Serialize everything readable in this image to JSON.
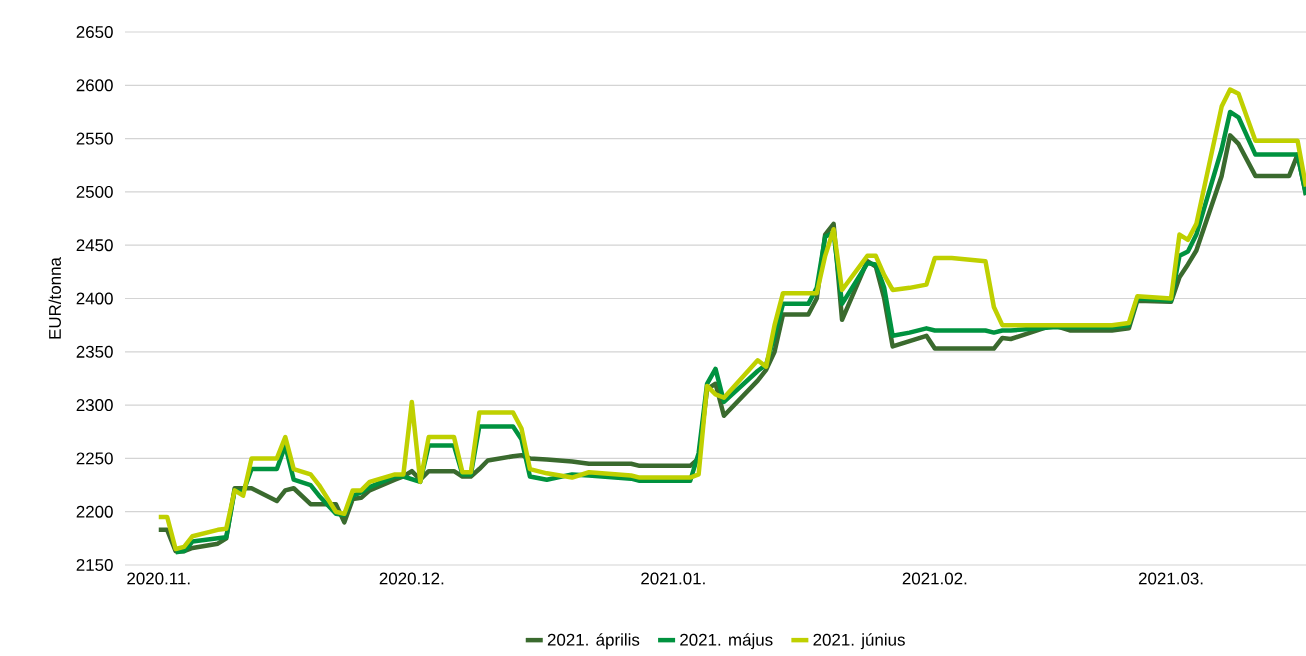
{
  "chart_data": {
    "type": "line",
    "ylabel": "EUR/tonna",
    "x": [
      "2020-11-01",
      "2020-11-02",
      "2020-11-03",
      "2020-11-04",
      "2020-11-05",
      "2020-11-08",
      "2020-11-09",
      "2020-11-10",
      "2020-11-11",
      "2020-11-12",
      "2020-11-15",
      "2020-11-16",
      "2020-11-17",
      "2020-11-19",
      "2020-11-20",
      "2020-11-22",
      "2020-11-23",
      "2020-11-24",
      "2020-11-25",
      "2020-11-26",
      "2020-11-29",
      "2020-11-30",
      "2020-12-01",
      "2020-12-02",
      "2020-12-03",
      "2020-12-06",
      "2020-12-07",
      "2020-12-08",
      "2020-12-09",
      "2020-12-10",
      "2020-12-13",
      "2020-12-14",
      "2020-12-15",
      "2020-12-17",
      "2020-12-20",
      "2020-12-22",
      "2020-12-27",
      "2020-12-28",
      "2021-01-03",
      "2021-01-04",
      "2021-01-05",
      "2021-01-06",
      "2021-01-07",
      "2021-01-11",
      "2021-01-12",
      "2021-01-13",
      "2021-01-14",
      "2021-01-17",
      "2021-01-18",
      "2021-01-19",
      "2021-01-20",
      "2021-01-21",
      "2021-01-24",
      "2021-01-25",
      "2021-01-26",
      "2021-01-27",
      "2021-01-29",
      "2021-01-31",
      "2021-02-01",
      "2021-02-03",
      "2021-02-07",
      "2021-02-08",
      "2021-02-09",
      "2021-02-10",
      "2021-02-15",
      "2021-02-17",
      "2021-02-22",
      "2021-02-24",
      "2021-02-25",
      "2021-03-01",
      "2021-03-02",
      "2021-03-03",
      "2021-03-04",
      "2021-03-07",
      "2021-03-08",
      "2021-03-09",
      "2021-03-11",
      "2021-03-15",
      "2021-03-16",
      "2021-03-17"
    ],
    "series": [
      {
        "name": "2021. április",
        "color": "#3a6a2e",
        "values": [
          2183,
          2183,
          2163,
          2163,
          2166,
          2170,
          2175,
          2222,
          2222,
          2222,
          2210,
          2220,
          2222,
          2207,
          2207,
          2207,
          2190,
          2212,
          2213,
          2220,
          2230,
          2233,
          2238,
          2230,
          2238,
          2238,
          2233,
          2233,
          2240,
          2248,
          2252,
          2253,
          2250,
          2249,
          2247,
          2245,
          2245,
          2243,
          2243,
          2250,
          2315,
          2320,
          2290,
          2323,
          2333,
          2350,
          2385,
          2385,
          2400,
          2460,
          2470,
          2380,
          2435,
          2430,
          2400,
          2355,
          2360,
          2365,
          2353,
          2353,
          2353,
          2353,
          2363,
          2362,
          2375,
          2370,
          2370,
          2372,
          2398,
          2397,
          2420,
          2432,
          2445,
          2515,
          2553,
          2545,
          2515,
          2515,
          2535,
          2497
        ]
      },
      {
        "name": "2021. május",
        "color": "#00923f",
        "values": [
          null,
          null,
          2162,
          2163,
          2172,
          2175,
          2176,
          2220,
          2218,
          2240,
          2240,
          2262,
          2230,
          2225,
          2215,
          2198,
          2197,
          2215,
          2218,
          2223,
          2233,
          2233,
          null,
          2228,
          2262,
          2262,
          2235,
          2235,
          2280,
          2280,
          2280,
          2268,
          2233,
          2230,
          2235,
          2234,
          2231,
          2229,
          2229,
          2255,
          2320,
          2334,
          2303,
          2332,
          2338,
          2365,
          2395,
          2395,
          2410,
          2458,
          2462,
          2395,
          2433,
          2432,
          2410,
          2365,
          2368,
          2372,
          2370,
          2370,
          2370,
          2368,
          2370,
          2370,
          2373,
          2373,
          2373,
          2375,
          2400,
          2398,
          2440,
          2444,
          2460,
          2540,
          2575,
          2570,
          2535,
          2535,
          2535,
          2497
        ]
      },
      {
        "name": "2021. június",
        "color": "#bfd000",
        "values": [
          2195,
          2195,
          2165,
          2167,
          2177,
          2183,
          2184,
          2220,
          2215,
          2250,
          2250,
          2270,
          2240,
          2235,
          2225,
          2200,
          2198,
          2220,
          2220,
          2228,
          2235,
          2235,
          2303,
          2228,
          2270,
          2270,
          2237,
          2237,
          2293,
          2293,
          2293,
          2278,
          2240,
          2236,
          2232,
          2237,
          2234,
          2232,
          2232,
          2235,
          2318,
          2310,
          2307,
          2342,
          2336,
          2375,
          2405,
          2405,
          2405,
          2440,
          2465,
          2408,
          2440,
          2440,
          2422,
          2408,
          2410,
          2413,
          2438,
          2438,
          2435,
          2392,
          2375,
          2375,
          2375,
          2375,
          2375,
          2377,
          2402,
          2400,
          2460,
          2455,
          2470,
          2580,
          2596,
          2592,
          2548,
          2548,
          2548,
          2505
        ]
      }
    ],
    "xlim": [
      "2020-10-28",
      "2021-03-17"
    ],
    "xticks": [
      {
        "value": "2020-11-01",
        "label": "2020.11."
      },
      {
        "value": "2020-12-01",
        "label": "2020.12."
      },
      {
        "value": "2021-01-01",
        "label": "2021.01."
      },
      {
        "value": "2021-02-01",
        "label": "2021.02."
      },
      {
        "value": "2021-03-01",
        "label": "2021.03."
      }
    ],
    "ylim": [
      2150,
      2650
    ],
    "yticks": [
      2150,
      2200,
      2250,
      2300,
      2350,
      2400,
      2450,
      2500,
      2550,
      2600,
      2650
    ],
    "grid": "y",
    "legend": "bottom",
    "line_style": "solid"
  }
}
